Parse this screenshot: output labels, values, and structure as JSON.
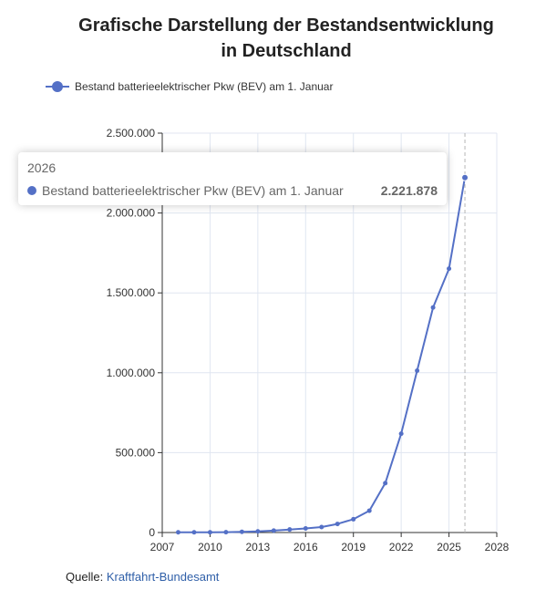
{
  "chart_data": {
    "type": "line",
    "title_line1": "Grafische Darstellung der Bestandsentwicklung",
    "title_line2": "in Deutschland",
    "series": [
      {
        "name": "Bestand batterieelektrischer Pkw (BEV) am 1. Januar",
        "color": "#5470c6",
        "x": [
          2008,
          2009,
          2010,
          2011,
          2012,
          2013,
          2014,
          2015,
          2016,
          2017,
          2018,
          2019,
          2020,
          2021,
          2022,
          2023,
          2024,
          2025,
          2026
        ],
        "values": [
          1436,
          1452,
          1588,
          2307,
          4541,
          7114,
          12156,
          18948,
          25502,
          34022,
          53861,
          83175,
          136617,
          309083,
          618460,
          1013009,
          1408681,
          1651439,
          2221878
        ]
      }
    ],
    "xlim": [
      2007,
      2028
    ],
    "ylim": [
      0,
      2500000
    ],
    "x_ticks": [
      2007,
      2010,
      2013,
      2016,
      2019,
      2022,
      2025,
      2028
    ],
    "y_ticks": [
      0,
      500000,
      1000000,
      1500000,
      2000000,
      2500000
    ],
    "x_tick_labels": [
      "2007",
      "2010",
      "2013",
      "2016",
      "2019",
      "2022",
      "2025",
      "2028"
    ],
    "y_tick_labels": [
      "0",
      "500.000",
      "1.000.000",
      "1.500.000",
      "2.000.000",
      "2.500.000"
    ],
    "grid": true,
    "legend_position": "top-left",
    "highlight_x": 2026
  },
  "tooltip": {
    "title": "2026",
    "series_name": "Bestand batterieelektrischer Pkw (BEV) am 1. Januar",
    "value": "2.221.878"
  },
  "source": {
    "label": "Quelle:",
    "link_text": "Kraftfahrt-Bundesamt"
  }
}
